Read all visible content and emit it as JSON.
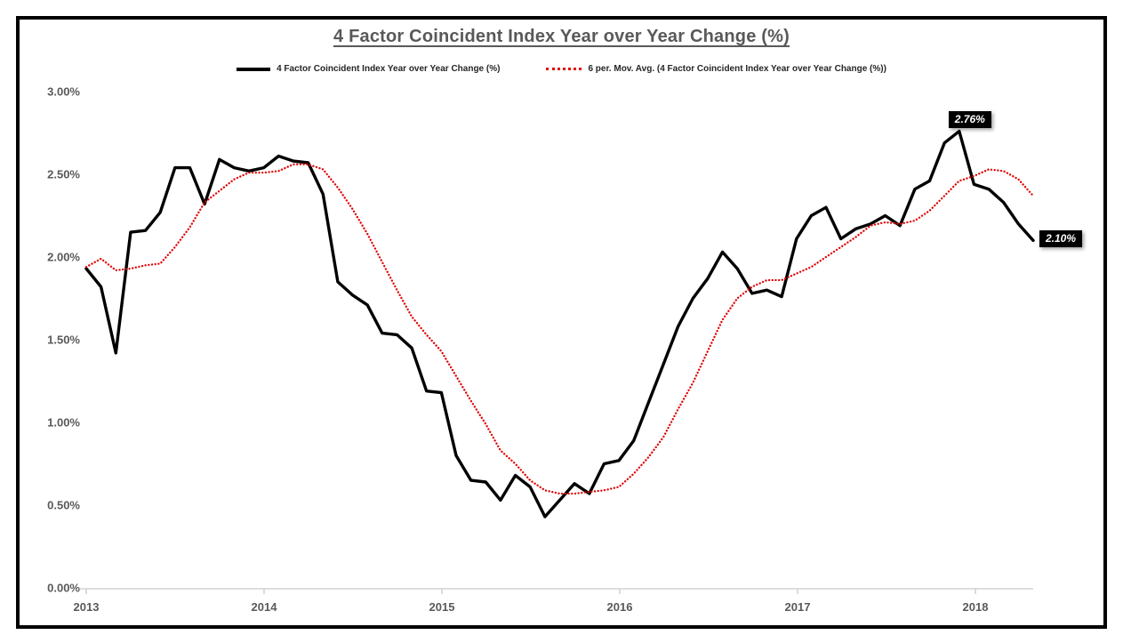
{
  "chart": {
    "title": "4 Factor Coincident Index Year over Year Change (%)",
    "legend": [
      {
        "label": "4 Factor Coincident Index Year over Year Change (%)",
        "style": "solid",
        "color": "#000000"
      },
      {
        "label": "6 per. Mov. Avg. (4 Factor Coincident Index Year over Year Change (%))",
        "style": "dotted",
        "color": "#e00000"
      }
    ]
  },
  "chart_data": {
    "type": "line",
    "title": "4 Factor Coincident Index Year over Year Change (%)",
    "grid": "off",
    "legend_position": "top",
    "ylim": [
      0,
      3
    ],
    "y_axis_tick_labels": [
      "3.00%",
      "2.50%",
      "2.00%",
      "1.50%",
      "1.00%",
      "0.50%",
      "0.00%"
    ],
    "x_axis_tick_labels": [
      "2013",
      "2014",
      "2015",
      "2016",
      "2017",
      "2018"
    ],
    "x_months": [
      "2013-01",
      "2013-02",
      "2013-03",
      "2013-04",
      "2013-05",
      "2013-06",
      "2013-07",
      "2013-08",
      "2013-09",
      "2013-10",
      "2013-11",
      "2013-12",
      "2014-01",
      "2014-02",
      "2014-03",
      "2014-04",
      "2014-05",
      "2014-06",
      "2014-07",
      "2014-08",
      "2014-09",
      "2014-10",
      "2014-11",
      "2014-12",
      "2015-01",
      "2015-02",
      "2015-03",
      "2015-04",
      "2015-05",
      "2015-06",
      "2015-07",
      "2015-08",
      "2015-09",
      "2015-10",
      "2015-11",
      "2015-12",
      "2016-01",
      "2016-02",
      "2016-03",
      "2016-04",
      "2016-05",
      "2016-06",
      "2016-07",
      "2016-08",
      "2016-09",
      "2016-10",
      "2016-11",
      "2016-12",
      "2017-01",
      "2017-02",
      "2017-03",
      "2017-04",
      "2017-05",
      "2017-06",
      "2017-07",
      "2017-08",
      "2017-09",
      "2017-10",
      "2017-11",
      "2017-12",
      "2018-01",
      "2018-02",
      "2018-03",
      "2018-04",
      "2018-05"
    ],
    "series": [
      {
        "name": "4 Factor Coincident Index Year over Year Change (%)",
        "style": "solid",
        "color": "#000000",
        "values": [
          1.93,
          1.82,
          1.42,
          2.15,
          2.16,
          2.27,
          2.54,
          2.54,
          2.32,
          2.59,
          2.54,
          2.52,
          2.54,
          2.61,
          2.58,
          2.57,
          2.38,
          1.85,
          1.77,
          1.71,
          1.54,
          1.53,
          1.45,
          1.19,
          1.18,
          0.8,
          0.65,
          0.64,
          0.53,
          0.68,
          0.61,
          0.43,
          0.53,
          0.63,
          0.57,
          0.75,
          0.77,
          0.89,
          1.12,
          1.35,
          1.58,
          1.75,
          1.87,
          2.03,
          1.93,
          1.78,
          1.8,
          1.76,
          2.11,
          2.25,
          2.3,
          2.11,
          2.17,
          2.2,
          2.25,
          2.19,
          2.41,
          2.46,
          2.69,
          2.76,
          2.44,
          2.41,
          2.33,
          2.2,
          2.1
        ]
      },
      {
        "name": "6 per. Mov. Avg. (4 Factor Coincident Index Year over Year Change (%))",
        "style": "dotted",
        "color": "#e00000",
        "values": [
          1.94,
          1.99,
          1.92,
          1.93,
          1.95,
          1.96,
          2.06,
          2.18,
          2.33,
          2.4,
          2.47,
          2.51,
          2.51,
          2.52,
          2.56,
          2.56,
          2.53,
          2.42,
          2.29,
          2.14,
          1.97,
          1.8,
          1.64,
          1.53,
          1.43,
          1.28,
          1.13,
          0.99,
          0.83,
          0.75,
          0.65,
          0.59,
          0.57,
          0.57,
          0.58,
          0.59,
          0.61,
          0.69,
          0.79,
          0.91,
          1.08,
          1.24,
          1.43,
          1.62,
          1.75,
          1.82,
          1.86,
          1.86,
          1.9,
          1.94,
          2.0,
          2.06,
          2.12,
          2.19,
          2.21,
          2.2,
          2.22,
          2.28,
          2.37,
          2.46,
          2.49,
          2.53,
          2.52,
          2.47,
          2.37
        ]
      }
    ],
    "annotations": [
      {
        "text": "2.76%",
        "x": "2017-12",
        "y": 2.76,
        "placement": "above-right"
      },
      {
        "text": "2.10%",
        "x": "2018-05",
        "y": 2.1,
        "placement": "right"
      }
    ]
  },
  "colors": {
    "title": "#595959",
    "axis_labels": "#595959",
    "axis_line": "#c9c9c9",
    "main_series": "#000000",
    "moving_average": "#e00000",
    "callout_bg": "#000000",
    "callout_text": "#ffffff",
    "frame_border": "#000000"
  }
}
